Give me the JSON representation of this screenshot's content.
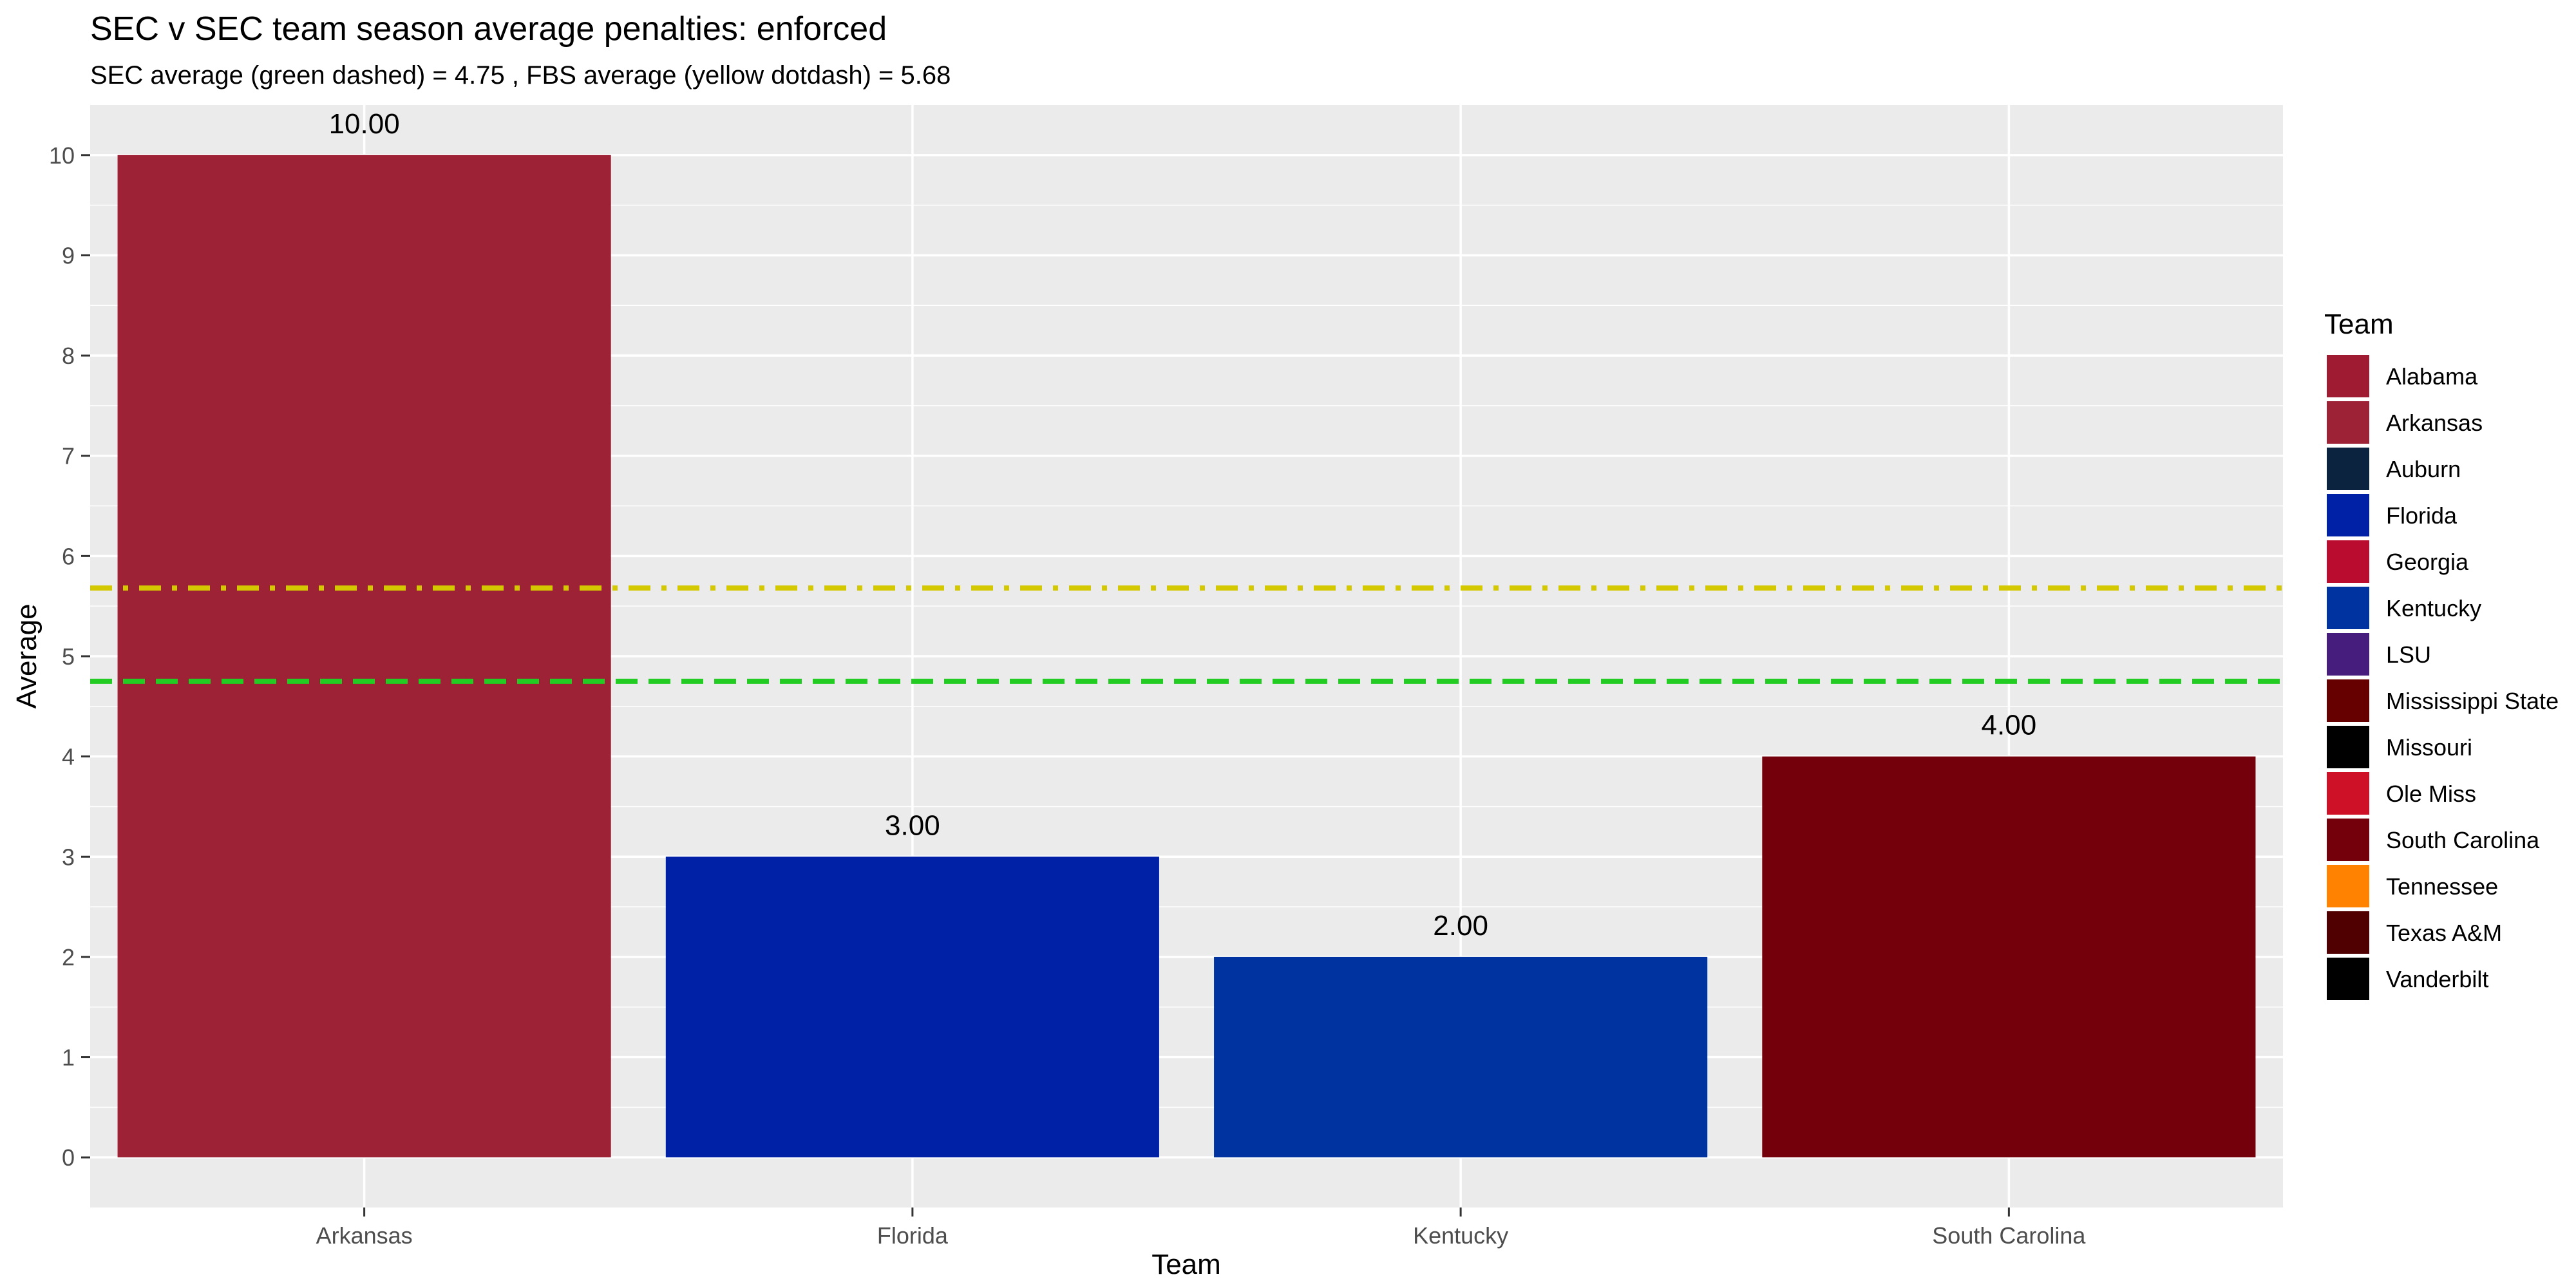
{
  "chart_data": {
    "type": "bar",
    "title": "SEC v SEC team season average penalties: enforced",
    "subtitle": "SEC average (green dashed) =  4.75 , FBS average (yellow dotdash) =  5.68",
    "xlabel": "Team",
    "ylabel": "Average",
    "categories": [
      "Arkansas",
      "Florida",
      "Kentucky",
      "South Carolina"
    ],
    "values": [
      10.0,
      3.0,
      2.0,
      4.0
    ],
    "value_labels": [
      "10.00",
      "3.00",
      "2.00",
      "4.00"
    ],
    "bar_colors": [
      "#9D2235",
      "#0021A5",
      "#0033A0",
      "#73000A"
    ],
    "ylim": [
      -0.5,
      10.5
    ],
    "yticks": [
      0,
      1,
      2,
      3,
      4,
      5,
      6,
      7,
      8,
      9,
      10
    ],
    "grid": true,
    "reference_lines": [
      {
        "value": 4.75,
        "color": "#22CC22",
        "style": "dashed"
      },
      {
        "value": 5.68,
        "color": "#D4C800",
        "style": "dotdash"
      }
    ],
    "legend": {
      "title": "Team",
      "position": "right",
      "entries": [
        {
          "label": "Alabama",
          "color": "#9E1B32"
        },
        {
          "label": "Arkansas",
          "color": "#9D2235"
        },
        {
          "label": "Auburn",
          "color": "#0C2340"
        },
        {
          "label": "Florida",
          "color": "#0021A5"
        },
        {
          "label": "Georgia",
          "color": "#BA0C2F"
        },
        {
          "label": "Kentucky",
          "color": "#0033A0"
        },
        {
          "label": "LSU",
          "color": "#461D7C"
        },
        {
          "label": "Mississippi State",
          "color": "#660000"
        },
        {
          "label": "Missouri",
          "color": "#000000"
        },
        {
          "label": "Ole Miss",
          "color": "#CE1126"
        },
        {
          "label": "South Carolina",
          "color": "#73000A"
        },
        {
          "label": "Tennessee",
          "color": "#FF8200"
        },
        {
          "label": "Texas A&M",
          "color": "#500000"
        },
        {
          "label": "Vanderbilt",
          "color": "#000000"
        }
      ]
    }
  }
}
